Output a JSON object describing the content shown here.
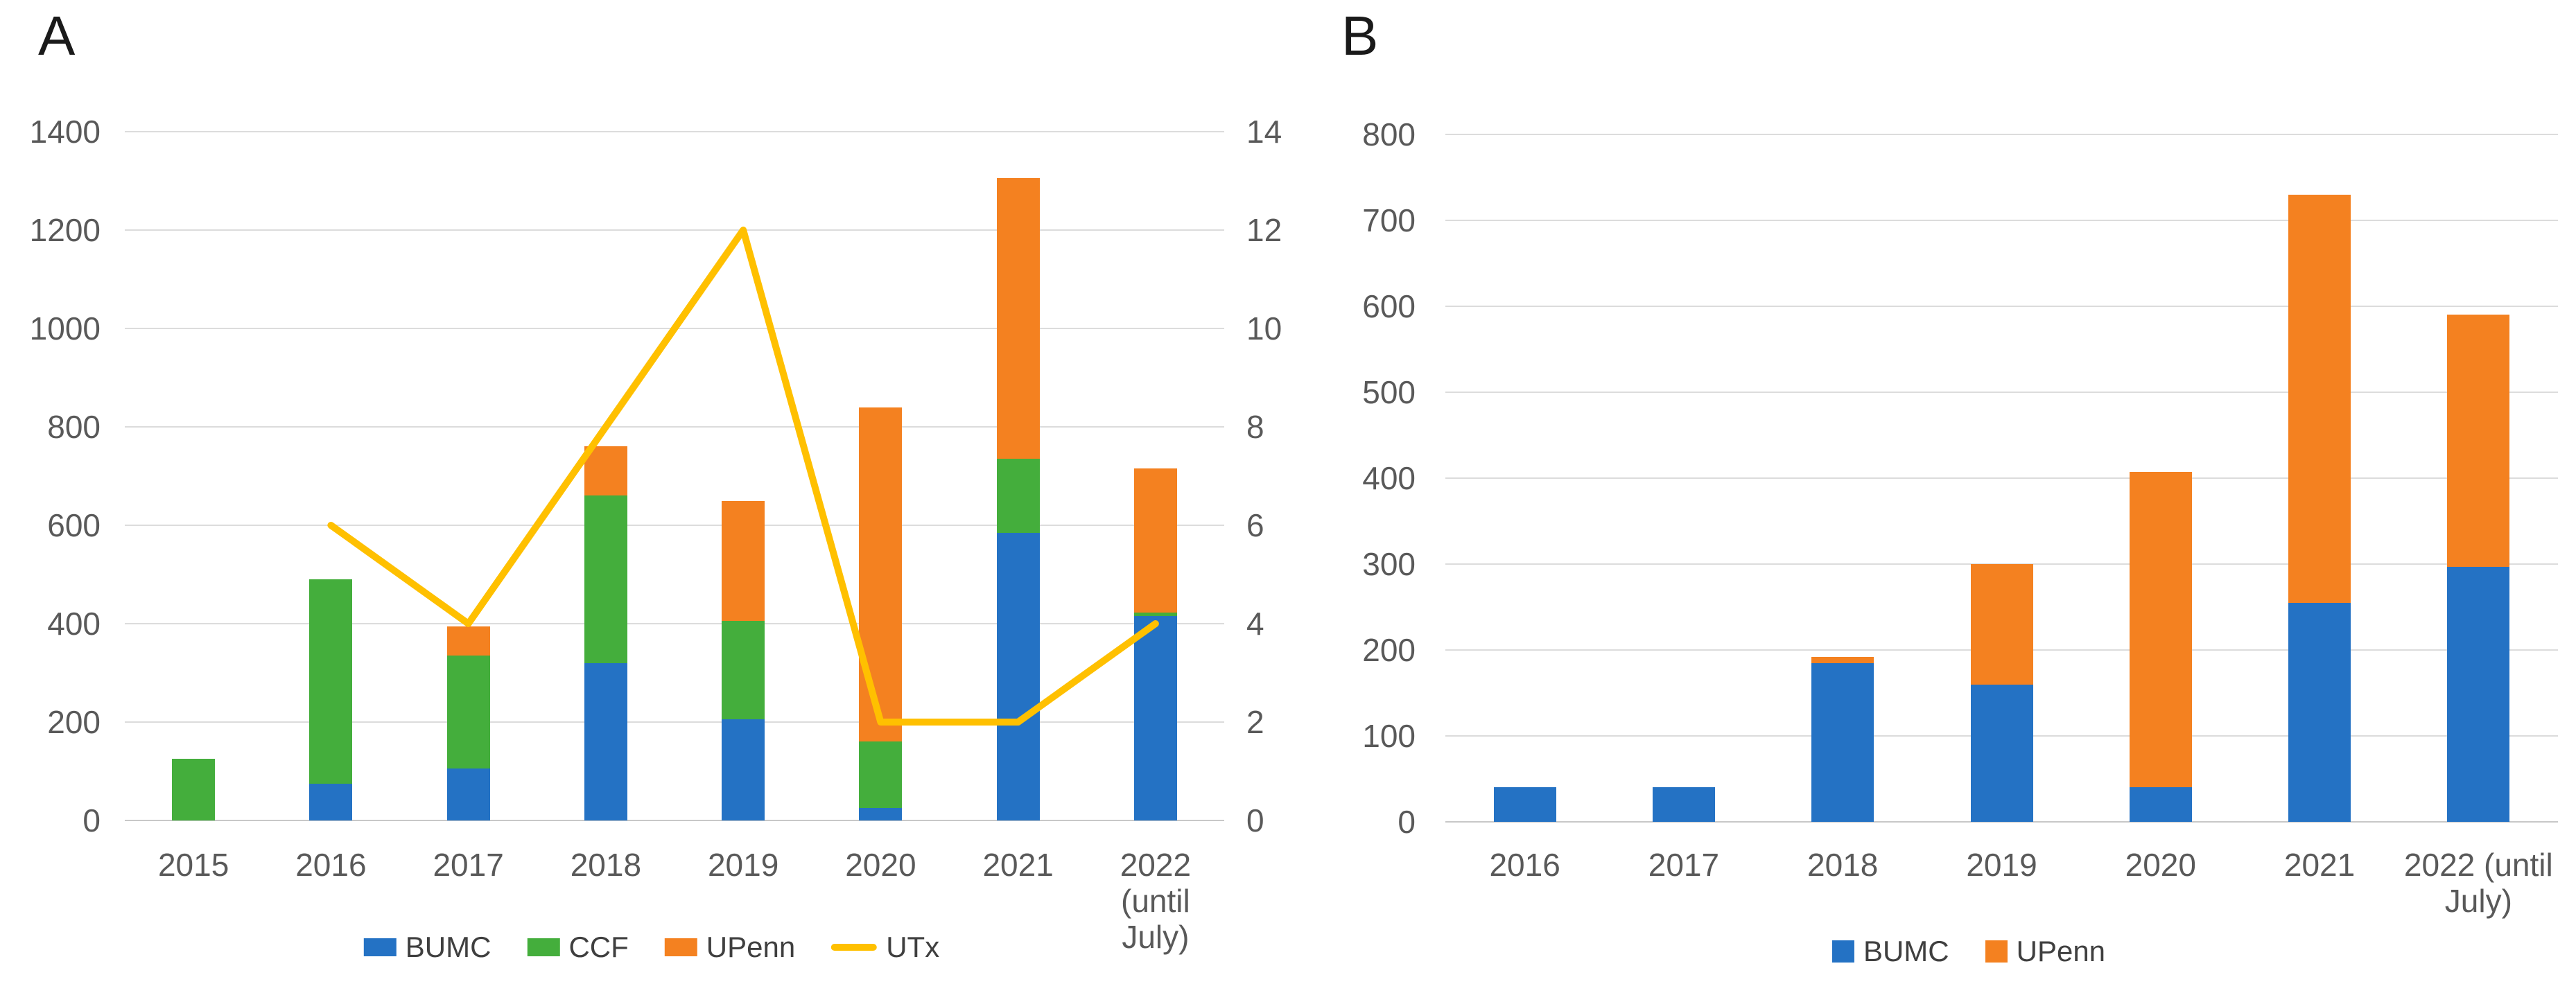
{
  "panels": [
    {
      "letter": "A"
    },
    {
      "letter": "B"
    }
  ],
  "colors": {
    "bumc": "#2472C4",
    "ccf": "#44AE3C",
    "upenn": "#F48120",
    "utx": "#FFC000",
    "grid": "#DCDCDC",
    "axis_line": "#C8C8C8",
    "tick_text": "#595959",
    "legend_text": "#3F3F3F",
    "panel_letter": "#1A1A1A"
  },
  "chart_data": [
    {
      "panel": "A",
      "type": "bar",
      "subtype": "stacked-bar-with-line",
      "categories": [
        "2015",
        "2016",
        "2017",
        "2018",
        "2019",
        "2020",
        "2021",
        "2022 (until July)"
      ],
      "x_tick_lines": [
        [
          "2015"
        ],
        [
          "2016"
        ],
        [
          "2017"
        ],
        [
          "2018"
        ],
        [
          "2019"
        ],
        [
          "2020"
        ],
        [
          "2021"
        ],
        [
          "2022",
          "(until",
          "July)"
        ]
      ],
      "series": [
        {
          "name": "BUMC",
          "type": "bar",
          "color_key": "bumc",
          "values": [
            0,
            75,
            105,
            320,
            205,
            25,
            585,
            415
          ]
        },
        {
          "name": "CCF",
          "type": "bar",
          "color_key": "ccf",
          "values": [
            125,
            415,
            230,
            340,
            200,
            135,
            150,
            8
          ]
        },
        {
          "name": "UPenn",
          "type": "bar",
          "color_key": "upenn",
          "values": [
            0,
            0,
            60,
            100,
            245,
            680,
            570,
            292
          ]
        },
        {
          "name": "UTx",
          "type": "line",
          "axis": "right",
          "color_key": "utx",
          "values": [
            null,
            6,
            4,
            8,
            12,
            2,
            2,
            4
          ]
        }
      ],
      "y_left": {
        "min": 0,
        "max": 1400,
        "step": 200,
        "ticks": [
          "0",
          "200",
          "400",
          "600",
          "800",
          "1000",
          "1200",
          "1400"
        ]
      },
      "y_right": {
        "min": 0,
        "max": 14,
        "step": 2,
        "ticks": [
          "0",
          "2",
          "4",
          "6",
          "8",
          "10",
          "12",
          "14"
        ]
      },
      "legend": [
        "BUMC",
        "CCF",
        "UPenn",
        "UTx"
      ],
      "grid": true,
      "legend_position": "bottom"
    },
    {
      "panel": "B",
      "type": "bar",
      "subtype": "stacked-bar",
      "categories": [
        "2016",
        "2017",
        "2018",
        "2019",
        "2020",
        "2021",
        "2022 (until July)"
      ],
      "x_tick_lines": [
        [
          "2016"
        ],
        [
          "2017"
        ],
        [
          "2018"
        ],
        [
          "2019"
        ],
        [
          "2020"
        ],
        [
          "2021"
        ],
        [
          "2022 (until",
          "July)"
        ]
      ],
      "series": [
        {
          "name": "BUMC",
          "type": "bar",
          "color_key": "bumc",
          "values": [
            40,
            40,
            185,
            160,
            40,
            255,
            297
          ]
        },
        {
          "name": "UPenn",
          "type": "bar",
          "color_key": "upenn",
          "values": [
            0,
            0,
            7,
            140,
            367,
            475,
            293
          ]
        }
      ],
      "y_left": {
        "min": 0,
        "max": 800,
        "step": 100,
        "ticks": [
          "0",
          "100",
          "200",
          "300",
          "400",
          "500",
          "600",
          "700",
          "800"
        ]
      },
      "legend": [
        "BUMC",
        "UPenn"
      ],
      "grid": true,
      "legend_position": "bottom"
    }
  ]
}
